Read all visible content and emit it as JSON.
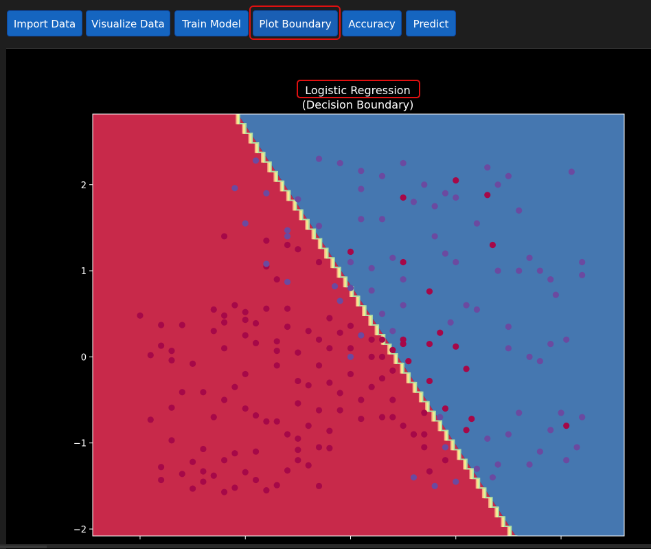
{
  "toolbar": {
    "buttons": [
      {
        "label": "Import Data"
      },
      {
        "label": "Visualize Data"
      },
      {
        "label": "Train Model"
      },
      {
        "label": "Plot Boundary",
        "highlighted": true
      },
      {
        "label": "Accuracy"
      },
      {
        "label": "Predict"
      }
    ]
  },
  "colors": {
    "class0_region": "#c8294a",
    "class1_region": "#4577b0",
    "class0_point": "#a60848",
    "class1_point": "#6b4aa0",
    "highlight": "#e01010",
    "button": "#1565c0"
  },
  "chart_data": {
    "type": "scatter",
    "title": "Logistic Regression",
    "subtitle": "(Decision Boundary)",
    "xlabel": "",
    "ylabel": "",
    "xlim": [
      -2.45,
      2.6
    ],
    "ylim": [
      -2.08,
      2.82
    ],
    "yticks": [
      -2,
      -1,
      0,
      1,
      2
    ],
    "ytick_labels": [
      "−2",
      "−1",
      "0",
      "1",
      "2"
    ],
    "xticks": [
      -2,
      -1,
      0,
      1,
      2
    ],
    "xtick_labels": [
      "",
      "",
      "",
      "",
      ""
    ],
    "grid": false,
    "decision_boundary": {
      "x": [
        -1.07,
        1.57
      ],
      "y": [
        2.82,
        -2.08
      ]
    },
    "series": [
      {
        "class": 0,
        "points": [
          [
            -2.0,
            0.48
          ],
          [
            -1.9,
            0.02
          ],
          [
            -1.8,
            0.37
          ],
          [
            -1.8,
            0.13
          ],
          [
            -1.7,
            0.07
          ],
          [
            -1.7,
            -0.04
          ],
          [
            -1.5,
            -0.08
          ],
          [
            -1.6,
            0.37
          ],
          [
            -1.6,
            -0.41
          ],
          [
            -1.4,
            -0.41
          ],
          [
            -1.3,
            0.55
          ],
          [
            -1.3,
            0.3
          ],
          [
            -1.2,
            0.48
          ],
          [
            -1.2,
            0.4
          ],
          [
            -1.1,
            0.6
          ],
          [
            -1.0,
            0.52
          ],
          [
            -1.0,
            0.43
          ],
          [
            -0.9,
            0.39
          ],
          [
            -0.9,
            0.16
          ],
          [
            -0.8,
            0.56
          ],
          [
            -0.7,
            0.18
          ],
          [
            -0.7,
            0.07
          ],
          [
            -0.7,
            -0.1
          ],
          [
            -0.6,
            0.56
          ],
          [
            -0.5,
            0.05
          ],
          [
            -0.5,
            -0.28
          ],
          [
            -0.5,
            -0.54
          ],
          [
            -0.4,
            -0.33
          ],
          [
            -0.3,
            0.2
          ],
          [
            -0.3,
            -0.1
          ],
          [
            -0.2,
            0.1
          ],
          [
            -0.2,
            -0.3
          ],
          [
            -0.1,
            0.28
          ],
          [
            -0.1,
            -0.42
          ],
          [
            0.0,
            0.1
          ],
          [
            0.0,
            -0.2
          ],
          [
            0.1,
            0.25
          ],
          [
            0.1,
            -0.5
          ],
          [
            0.2,
            0.0
          ],
          [
            0.2,
            -0.35
          ],
          [
            0.3,
            0.2
          ],
          [
            0.3,
            -0.25
          ],
          [
            0.4,
            -0.5
          ],
          [
            0.4,
            0.08
          ],
          [
            -1.0,
            -0.2
          ],
          [
            -1.1,
            -0.35
          ],
          [
            -1.2,
            -0.5
          ],
          [
            -0.9,
            -0.68
          ],
          [
            -0.8,
            -0.75
          ],
          [
            -0.6,
            -0.9
          ],
          [
            -0.4,
            -0.8
          ],
          [
            -0.3,
            -0.62
          ],
          [
            -0.2,
            -0.86
          ],
          [
            -0.1,
            -0.62
          ],
          [
            0.1,
            -0.72
          ],
          [
            0.3,
            -0.7
          ],
          [
            0.5,
            -0.8
          ],
          [
            0.6,
            -0.9
          ],
          [
            -1.9,
            -0.73
          ],
          [
            -1.7,
            -0.59
          ],
          [
            -1.7,
            -0.97
          ],
          [
            -1.5,
            -1.22
          ],
          [
            -1.4,
            -1.07
          ],
          [
            -1.4,
            -1.33
          ],
          [
            -1.3,
            -1.38
          ],
          [
            -1.2,
            -1.57
          ],
          [
            -1.1,
            -1.52
          ],
          [
            -1.0,
            -1.34
          ],
          [
            -0.9,
            -1.43
          ],
          [
            -0.8,
            -1.55
          ],
          [
            -0.7,
            -1.49
          ],
          [
            -0.5,
            -1.2
          ],
          [
            -0.4,
            -1.26
          ],
          [
            -0.3,
            -1.05
          ],
          [
            -0.2,
            -1.06
          ],
          [
            -1.8,
            -1.28
          ],
          [
            -1.8,
            -1.43
          ],
          [
            -1.6,
            -1.36
          ],
          [
            -1.5,
            -1.53
          ],
          [
            -1.4,
            -1.45
          ],
          [
            -1.2,
            -1.2
          ],
          [
            -1.1,
            -1.12
          ],
          [
            -0.9,
            -1.1
          ],
          [
            -0.6,
            -1.32
          ],
          [
            -0.5,
            -1.08
          ],
          [
            -0.3,
            -1.5
          ],
          [
            -1.3,
            -0.7
          ],
          [
            -1.0,
            -0.6
          ],
          [
            -0.7,
            -0.75
          ],
          [
            -0.5,
            -0.95
          ],
          [
            -1.2,
            0.1
          ],
          [
            -1.0,
            0.25
          ],
          [
            -0.6,
            0.35
          ],
          [
            -0.4,
            0.3
          ],
          [
            -0.2,
            0.45
          ],
          [
            0.0,
            0.36
          ],
          [
            0.2,
            0.2
          ],
          [
            0.3,
            0.0
          ],
          [
            0.4,
            -0.16
          ],
          [
            0.55,
            -0.05
          ],
          [
            0.5,
            0.15
          ],
          [
            -0.8,
            1.05
          ],
          [
            -0.5,
            1.25
          ],
          [
            -0.3,
            1.1
          ],
          [
            0.0,
            1.22
          ],
          [
            0.5,
            1.1
          ],
          [
            -1.2,
            1.4
          ],
          [
            -0.8,
            1.35
          ],
          [
            -0.6,
            1.3
          ],
          [
            -0.7,
            0.9
          ],
          [
            0.85,
            0.28
          ],
          [
            0.75,
            -0.28
          ],
          [
            0.9,
            -0.6
          ],
          [
            1.0,
            0.12
          ],
          [
            1.1,
            -0.14
          ],
          [
            1.15,
            -0.72
          ],
          [
            0.75,
            0.15
          ],
          [
            0.75,
            0.76
          ],
          [
            0.5,
            0.2
          ],
          [
            0.4,
            -0.7
          ],
          [
            0.7,
            -1.05
          ],
          [
            0.9,
            -1.2
          ],
          [
            0.75,
            -1.33
          ],
          [
            0.7,
            -0.9
          ],
          [
            0.5,
            1.85
          ],
          [
            1.0,
            2.05
          ],
          [
            1.3,
            1.88
          ],
          [
            1.35,
            1.3
          ],
          [
            2.05,
            -0.8
          ],
          [
            0.7,
            -0.65
          ],
          [
            0.6,
            -0.9
          ],
          [
            1.1,
            -0.85
          ]
        ]
      },
      {
        "class": 1,
        "points": [
          [
            -0.9,
            2.28
          ],
          [
            -1.1,
            1.96
          ],
          [
            -0.8,
            1.9
          ],
          [
            -1.0,
            1.55
          ],
          [
            -0.6,
            1.4
          ],
          [
            -0.6,
            1.47
          ],
          [
            -0.6,
            0.87
          ],
          [
            -0.8,
            1.08
          ],
          [
            -0.5,
            1.83
          ],
          [
            -0.3,
            1.52
          ],
          [
            -0.3,
            2.3
          ],
          [
            -0.1,
            2.25
          ],
          [
            0.1,
            1.6
          ],
          [
            0.1,
            1.95
          ],
          [
            0.1,
            2.16
          ],
          [
            0.3,
            2.1
          ],
          [
            0.3,
            1.6
          ],
          [
            0.5,
            2.25
          ],
          [
            0.0,
            1.1
          ],
          [
            0.2,
            1.03
          ],
          [
            0.4,
            1.15
          ],
          [
            0.5,
            0.9
          ],
          [
            0.5,
            0.6
          ],
          [
            0.0,
            0.8
          ],
          [
            0.2,
            0.77
          ],
          [
            0.3,
            0.5
          ],
          [
            0.4,
            0.3
          ],
          [
            0.6,
            1.8
          ],
          [
            0.7,
            2.0
          ],
          [
            0.8,
            1.75
          ],
          [
            0.9,
            1.9
          ],
          [
            1.0,
            1.85
          ],
          [
            1.2,
            1.55
          ],
          [
            1.3,
            2.2
          ],
          [
            1.4,
            2.0
          ],
          [
            1.5,
            2.1
          ],
          [
            1.6,
            1.7
          ],
          [
            1.4,
            1.0
          ],
          [
            1.6,
            1.0
          ],
          [
            1.7,
            1.15
          ],
          [
            1.8,
            1.0
          ],
          [
            1.9,
            0.9
          ],
          [
            1.95,
            0.72
          ],
          [
            2.1,
            2.15
          ],
          [
            2.2,
            1.1
          ],
          [
            2.2,
            0.95
          ],
          [
            0.8,
            1.4
          ],
          [
            0.9,
            1.2
          ],
          [
            1.0,
            1.1
          ],
          [
            1.1,
            0.6
          ],
          [
            1.2,
            0.55
          ],
          [
            1.5,
            0.35
          ],
          [
            1.5,
            0.1
          ],
          [
            1.7,
            0.0
          ],
          [
            1.8,
            -0.05
          ],
          [
            1.9,
            0.15
          ],
          [
            2.05,
            0.2
          ],
          [
            2.2,
            -0.7
          ],
          [
            1.5,
            -0.9
          ],
          [
            1.6,
            -0.65
          ],
          [
            1.8,
            -1.1
          ],
          [
            1.9,
            -0.85
          ],
          [
            2.0,
            -0.65
          ],
          [
            2.05,
            -1.2
          ],
          [
            2.15,
            -1.05
          ],
          [
            1.2,
            -1.3
          ],
          [
            1.0,
            -1.45
          ],
          [
            0.8,
            -1.5
          ],
          [
            0.9,
            -1.05
          ],
          [
            0.6,
            -1.4
          ],
          [
            1.4,
            -1.25
          ],
          [
            1.7,
            -1.25
          ],
          [
            1.3,
            -0.95
          ],
          [
            0.1,
            0.25
          ],
          [
            0.0,
            0.0
          ],
          [
            -0.15,
            0.82
          ],
          [
            -0.1,
            0.65
          ],
          [
            1.35,
            -1.4
          ],
          [
            0.85,
            -0.7
          ],
          [
            0.95,
            0.4
          ]
        ]
      }
    ]
  }
}
